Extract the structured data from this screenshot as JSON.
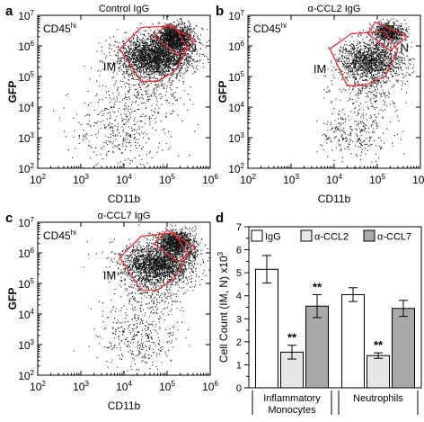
{
  "colors": {
    "gate": "#e8333a",
    "dots": "#111111",
    "frame": "#000000",
    "bar_igg": "#ffffff",
    "bar_ccl2": "#e6e6e6",
    "bar_ccl7": "#a9a9a9"
  },
  "chart_data": [
    {
      "type": "scatter",
      "panel": "a",
      "title": "Control IgG",
      "corner_label": "CD45",
      "corner_label_sup": "hi",
      "xlabel": "CD11b",
      "ylabel": "GFP",
      "xscale": "log",
      "yscale": "log",
      "xlim": [
        100,
        1000000
      ],
      "ylim": [
        100,
        10000000
      ],
      "x_ticks": [
        {
          "base": "10",
          "exp": "2"
        },
        {
          "base": "10",
          "exp": "3"
        },
        {
          "base": "10",
          "exp": "4"
        },
        {
          "base": "10",
          "exp": "5"
        },
        {
          "base": "10",
          "exp": "6"
        }
      ],
      "y_ticks": [
        {
          "base": "10",
          "exp": "2"
        },
        {
          "base": "10",
          "exp": "3"
        },
        {
          "base": "10",
          "exp": "4"
        },
        {
          "base": "10",
          "exp": "5"
        },
        {
          "base": "10",
          "exp": "6"
        },
        {
          "base": "10",
          "exp": "7"
        }
      ],
      "gates": [
        {
          "label": "IM",
          "vertices": [
            [
              8000,
              800000
            ],
            [
              25000,
              4000000
            ],
            [
              150000,
              4500000
            ],
            [
              300000,
              800000
            ],
            [
              150000,
              150000
            ],
            [
              60000,
              70000
            ],
            [
              25000,
              70000
            ]
          ]
        },
        {
          "label": "N",
          "vertices": [
            [
              100000,
              5000000
            ],
            [
              450000,
              1500000
            ],
            [
              180000,
              500000
            ],
            [
              50000,
              2000000
            ]
          ]
        }
      ],
      "clusters": [
        {
          "x": 55000,
          "y": 500000,
          "sx": 0.42,
          "sy": 0.32,
          "n": 2400
        },
        {
          "x": 150000,
          "y": 2000000,
          "sx": 0.22,
          "sy": 0.2,
          "n": 1300
        },
        {
          "x": 35000,
          "y": 60000,
          "sx": 0.45,
          "sy": 0.55,
          "n": 350
        },
        {
          "x": 8000,
          "y": 2000,
          "sx": 0.55,
          "sy": 0.6,
          "n": 350
        }
      ]
    },
    {
      "type": "scatter",
      "panel": "b",
      "title": "α-CCL2 IgG",
      "corner_label": "CD45",
      "corner_label_sup": "hi",
      "xlabel": "CD11b",
      "ylabel": "GFP",
      "xscale": "log",
      "yscale": "log",
      "xlim": [
        100,
        1000000
      ],
      "ylim": [
        100,
        10000000
      ],
      "x_ticks": [
        {
          "base": "10",
          "exp": "2"
        },
        {
          "base": "10",
          "exp": "3"
        },
        {
          "base": "10",
          "exp": "4"
        },
        {
          "base": "10",
          "exp": "5"
        },
        {
          "base": "10",
          "exp": "6"
        }
      ],
      "y_ticks": [
        {
          "base": "10",
          "exp": "2"
        },
        {
          "base": "10",
          "exp": "3"
        },
        {
          "base": "10",
          "exp": "4"
        },
        {
          "base": "10",
          "exp": "5"
        },
        {
          "base": "10",
          "exp": "6"
        },
        {
          "base": "10",
          "exp": "7"
        }
      ],
      "gates": [
        {
          "label": "IM",
          "vertices": [
            [
              8000,
              800000
            ],
            [
              25000,
              2500000
            ],
            [
              150000,
              3000000
            ],
            [
              300000,
              700000
            ],
            [
              150000,
              100000
            ],
            [
              50000,
              50000
            ],
            [
              20000,
              50000
            ]
          ]
        },
        {
          "label": "N",
          "vertices": [
            [
              90000,
              6000000
            ],
            [
              500000,
              2000000
            ],
            [
              200000,
              700000
            ],
            [
              60000,
              2500000
            ]
          ]
        }
      ],
      "clusters": [
        {
          "x": 70000,
          "y": 350000,
          "sx": 0.38,
          "sy": 0.33,
          "n": 1400
        },
        {
          "x": 180000,
          "y": 2800000,
          "sx": 0.18,
          "sy": 0.17,
          "n": 700
        },
        {
          "x": 60000,
          "y": 40000,
          "sx": 0.4,
          "sy": 0.5,
          "n": 250
        },
        {
          "x": 30000,
          "y": 1500,
          "sx": 0.4,
          "sy": 0.45,
          "n": 280
        }
      ]
    },
    {
      "type": "scatter",
      "panel": "c",
      "title": "α-CCL7 IgG",
      "corner_label": "CD45",
      "corner_label_sup": "hi",
      "xlabel": "CD11b",
      "ylabel": "GFP",
      "xscale": "log",
      "yscale": "log",
      "xlim": [
        100,
        1000000
      ],
      "ylim": [
        100,
        10000000
      ],
      "x_ticks": [
        {
          "base": "10",
          "exp": "2"
        },
        {
          "base": "10",
          "exp": "3"
        },
        {
          "base": "10",
          "exp": "4"
        },
        {
          "base": "10",
          "exp": "5"
        },
        {
          "base": "10",
          "exp": "6"
        }
      ],
      "y_ticks": [
        {
          "base": "10",
          "exp": "2"
        },
        {
          "base": "10",
          "exp": "3"
        },
        {
          "base": "10",
          "exp": "4"
        },
        {
          "base": "10",
          "exp": "5"
        },
        {
          "base": "10",
          "exp": "6"
        },
        {
          "base": "10",
          "exp": "7"
        }
      ],
      "gates": [
        {
          "label": "IM",
          "vertices": [
            [
              8000,
              700000
            ],
            [
              25000,
              3500000
            ],
            [
              150000,
              4500000
            ],
            [
              300000,
              900000
            ],
            [
              150000,
              150000
            ],
            [
              60000,
              60000
            ],
            [
              25000,
              60000
            ]
          ]
        },
        {
          "label": "N",
          "vertices": [
            [
              100000,
              5500000
            ],
            [
              450000,
              1500000
            ],
            [
              180000,
              500000
            ],
            [
              50000,
              2000000
            ]
          ]
        }
      ],
      "clusters": [
        {
          "x": 60000,
          "y": 450000,
          "sx": 0.42,
          "sy": 0.33,
          "n": 2000
        },
        {
          "x": 160000,
          "y": 2200000,
          "sx": 0.2,
          "sy": 0.2,
          "n": 1100
        },
        {
          "x": 40000,
          "y": 50000,
          "sx": 0.42,
          "sy": 0.5,
          "n": 300
        },
        {
          "x": 20000,
          "y": 1500,
          "sx": 0.45,
          "sy": 0.5,
          "n": 320
        }
      ]
    },
    {
      "type": "bar",
      "panel": "d",
      "ylabel": "Cell Count (IM, N) x10",
      "ylabel_sup": "3",
      "ylim": [
        0,
        7
      ],
      "y_ticks": [
        "0",
        "1",
        "2",
        "3",
        "4",
        "5",
        "6",
        "7"
      ],
      "categories": [
        "Inflammatory Monocytes",
        "Neutrophils"
      ],
      "category_labels": [
        [
          "Inflammatory",
          "Monocytes"
        ],
        [
          "Neutrophils"
        ]
      ],
      "series": [
        {
          "name": "IgG",
          "values": [
            5.15,
            4.05
          ],
          "errors": [
            0.6,
            0.3
          ],
          "significance": [
            "",
            ""
          ]
        },
        {
          "name": "α-CCL2",
          "values": [
            1.55,
            1.4
          ],
          "errors": [
            0.3,
            0.12
          ],
          "significance": [
            "**",
            "**"
          ]
        },
        {
          "name": "α-CCL7",
          "values": [
            3.55,
            3.45
          ],
          "errors": [
            0.5,
            0.35
          ],
          "significance": [
            "**",
            ""
          ]
        }
      ],
      "legend": "top"
    }
  ]
}
